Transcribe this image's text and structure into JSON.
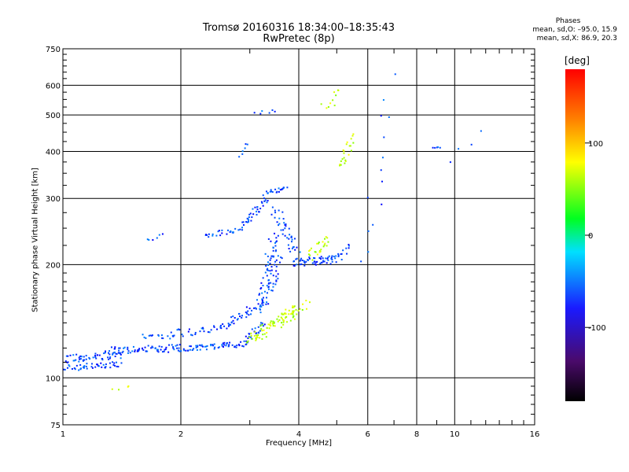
{
  "chart_data": {
    "type": "scatter",
    "title": "Tromsø 20160316 18:34:00–18:35:43",
    "subtitle": "RwPretec (8p)",
    "xlabel": "Frequency [MHz]",
    "ylabel": "Stationary phase Virtual Height [km]",
    "x_scale": "log",
    "y_scale": "log",
    "xlim": [
      1,
      16
    ],
    "ylim": [
      75,
      750
    ],
    "x_ticks": [
      1,
      2,
      4,
      6,
      8,
      10,
      16
    ],
    "y_ticks": [
      75,
      100,
      200,
      300,
      400,
      500,
      600,
      750
    ],
    "grid": true,
    "phases_header": {
      "title": "Phases",
      "line1": "mean, sd,O: –95.0, 15.9",
      "line2": "mean, sd,X:  86.9, 20.3"
    },
    "colorbar": {
      "unit": "[deg]",
      "ticks": [
        100,
        0,
        -100
      ],
      "range": [
        -180,
        180
      ]
    },
    "series": [
      {
        "name": "O",
        "color_phase": -95,
        "segments": [
          {
            "x0": 1.0,
            "x1": 1.4,
            "y0": 112,
            "y1": 115,
            "n": 55,
            "jit": 0.022
          },
          {
            "x0": 1.02,
            "x1": 1.4,
            "y0": 106,
            "y1": 109,
            "n": 45,
            "jit": 0.018
          },
          {
            "x0": 1.3,
            "x1": 2.0,
            "y0": 118,
            "y1": 120,
            "n": 70,
            "jit": 0.022
          },
          {
            "x0": 2.0,
            "x1": 2.9,
            "y0": 119,
            "y1": 123,
            "n": 60,
            "jit": 0.018
          },
          {
            "x0": 2.9,
            "x1": 3.25,
            "y0": 124,
            "y1": 140,
            "n": 25,
            "jit": 0.02
          },
          {
            "x0": 1.6,
            "x1": 2.5,
            "y0": 128,
            "y1": 135,
            "n": 40,
            "jit": 0.025
          },
          {
            "x0": 2.5,
            "x1": 3.3,
            "y0": 135,
            "y1": 160,
            "n": 50,
            "jit": 0.025
          },
          {
            "x0": 3.2,
            "x1": 3.45,
            "y0": 150,
            "y1": 240,
            "n": 55,
            "jit": 0.03
          },
          {
            "x0": 3.35,
            "x1": 3.55,
            "y0": 170,
            "y1": 215,
            "n": 30,
            "jit": 0.03
          },
          {
            "x0": 2.3,
            "x1": 2.9,
            "y0": 238,
            "y1": 250,
            "n": 25,
            "jit": 0.015
          },
          {
            "x0": 2.9,
            "x1": 3.3,
            "y0": 255,
            "y1": 300,
            "n": 35,
            "jit": 0.02
          },
          {
            "x0": 3.3,
            "x1": 3.7,
            "y0": 312,
            "y1": 318,
            "n": 20,
            "jit": 0.012
          },
          {
            "x0": 3.5,
            "x1": 3.95,
            "y0": 280,
            "y1": 215,
            "n": 40,
            "jit": 0.03
          },
          {
            "x0": 3.9,
            "x1": 4.9,
            "y0": 203,
            "y1": 206,
            "n": 55,
            "jit": 0.025
          },
          {
            "x0": 4.9,
            "x1": 5.4,
            "y0": 205,
            "y1": 225,
            "n": 15,
            "jit": 0.025
          },
          {
            "x0": 1.65,
            "x1": 1.8,
            "y0": 235,
            "y1": 240,
            "n": 6,
            "jit": 0.02
          },
          {
            "x0": 2.8,
            "x1": 3.0,
            "y0": 390,
            "y1": 420,
            "n": 6,
            "jit": 0.015
          },
          {
            "x0": 3.1,
            "x1": 3.5,
            "y0": 505,
            "y1": 512,
            "n": 6,
            "jit": 0.01
          },
          {
            "x0": 6.0,
            "x1": 6.8,
            "y0": 200,
            "y1": 620,
            "n": 14,
            "jit": 0.05
          },
          {
            "x0": 8.8,
            "x1": 9.2,
            "y0": 408,
            "y1": 410,
            "n": 5,
            "jit": 0.005
          },
          {
            "x0": 10.0,
            "x1": 11.5,
            "y0": 380,
            "y1": 440,
            "n": 4,
            "jit": 0.03
          }
        ]
      },
      {
        "name": "X",
        "color_phase": 87,
        "segments": [
          {
            "x0": 3.0,
            "x1": 3.9,
            "y0": 125,
            "y1": 152,
            "n": 70,
            "jit": 0.03
          },
          {
            "x0": 3.6,
            "x1": 4.2,
            "y0": 140,
            "y1": 158,
            "n": 25,
            "jit": 0.03
          },
          {
            "x0": 4.3,
            "x1": 4.7,
            "y0": 210,
            "y1": 235,
            "n": 25,
            "jit": 0.03
          },
          {
            "x0": 4.7,
            "x1": 5.1,
            "y0": 520,
            "y1": 580,
            "n": 10,
            "jit": 0.03
          },
          {
            "x0": 5.1,
            "x1": 5.5,
            "y0": 360,
            "y1": 440,
            "n": 22,
            "jit": 0.03
          },
          {
            "x0": 1.35,
            "x1": 1.5,
            "y0": 92,
            "y1": 96,
            "n": 4,
            "jit": 0.02
          }
        ]
      }
    ]
  }
}
